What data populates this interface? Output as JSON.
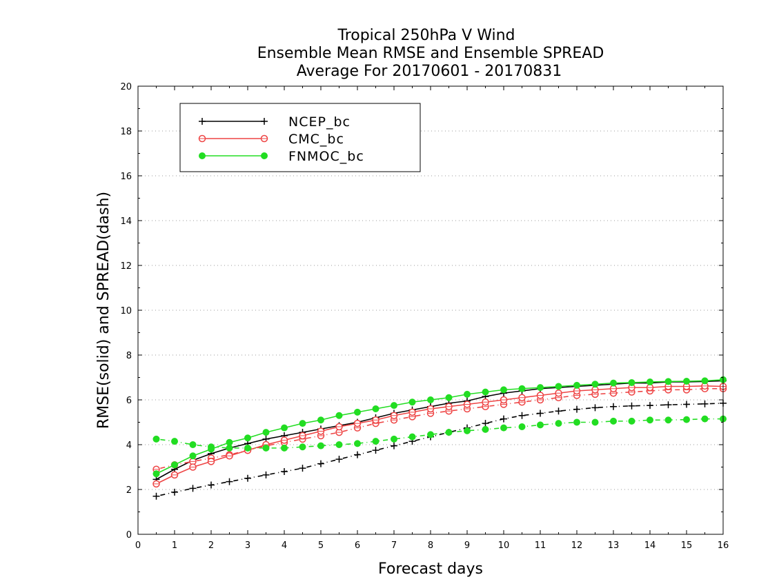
{
  "chart_data": {
    "type": "line",
    "title": [
      "Tropical 250hPa V Wind",
      "Ensemble Mean RMSE and Ensemble SPREAD",
      "Average For 20170601 - 20170831"
    ],
    "xlabel": "Forecast days",
    "ylabel": "RMSE(solid) and SPREAD(dash)",
    "xlim": [
      0,
      16
    ],
    "ylim": [
      0,
      20
    ],
    "xticks": [
      0,
      1,
      2,
      3,
      4,
      5,
      6,
      7,
      8,
      9,
      10,
      11,
      12,
      13,
      14,
      15,
      16
    ],
    "yticks": [
      0,
      2,
      4,
      6,
      8,
      10,
      12,
      14,
      16,
      18,
      20
    ],
    "grid": "horizontal-dotted",
    "legend_position": "top-left",
    "x": [
      0.5,
      1,
      1.5,
      2,
      2.5,
      3,
      3.5,
      4,
      4.5,
      5,
      5.5,
      6,
      6.5,
      7,
      7.5,
      8,
      8.5,
      9,
      9.5,
      10,
      10.5,
      11,
      11.5,
      12,
      12.5,
      13,
      13.5,
      14,
      14.5,
      15,
      15.5,
      16
    ],
    "series": [
      {
        "name": "NCEP_bc",
        "color": "#000000",
        "marker": "plus",
        "rmse": [
          2.45,
          2.9,
          3.3,
          3.6,
          3.85,
          4.05,
          4.25,
          4.4,
          4.55,
          4.7,
          4.85,
          5.0,
          5.2,
          5.4,
          5.55,
          5.7,
          5.85,
          5.95,
          6.15,
          6.3,
          6.4,
          6.5,
          6.55,
          6.6,
          6.65,
          6.7,
          6.75,
          6.75,
          6.8,
          6.8,
          6.82,
          6.85
        ],
        "spread": [
          1.7,
          1.88,
          2.05,
          2.2,
          2.35,
          2.5,
          2.65,
          2.8,
          2.95,
          3.15,
          3.35,
          3.55,
          3.75,
          3.95,
          4.15,
          4.35,
          4.55,
          4.75,
          4.95,
          5.15,
          5.3,
          5.4,
          5.5,
          5.58,
          5.65,
          5.7,
          5.73,
          5.75,
          5.78,
          5.8,
          5.82,
          5.85
        ]
      },
      {
        "name": "CMC_bc",
        "color": "#ee4444",
        "marker": "open-circle",
        "rmse": [
          2.25,
          2.65,
          3.0,
          3.25,
          3.5,
          3.75,
          4.0,
          4.2,
          4.4,
          4.6,
          4.8,
          4.95,
          5.1,
          5.3,
          5.45,
          5.6,
          5.7,
          5.8,
          5.9,
          6.0,
          6.1,
          6.2,
          6.3,
          6.4,
          6.45,
          6.5,
          6.55,
          6.55,
          6.6,
          6.6,
          6.62,
          6.6
        ],
        "spread": [
          2.9,
          3.1,
          3.25,
          3.4,
          3.55,
          3.75,
          3.95,
          4.1,
          4.25,
          4.4,
          4.55,
          4.75,
          4.95,
          5.1,
          5.25,
          5.4,
          5.5,
          5.6,
          5.7,
          5.8,
          5.9,
          6.0,
          6.1,
          6.2,
          6.25,
          6.3,
          6.35,
          6.4,
          6.45,
          6.45,
          6.5,
          6.5
        ]
      },
      {
        "name": "FNMOC_bc",
        "color": "#22dd22",
        "marker": "filled-circle",
        "rmse": [
          2.7,
          3.1,
          3.5,
          3.8,
          4.1,
          4.3,
          4.55,
          4.75,
          4.95,
          5.1,
          5.3,
          5.45,
          5.6,
          5.75,
          5.9,
          6.0,
          6.1,
          6.25,
          6.35,
          6.45,
          6.5,
          6.55,
          6.6,
          6.65,
          6.7,
          6.75,
          6.77,
          6.8,
          6.82,
          6.83,
          6.85,
          6.9
        ],
        "spread": [
          4.25,
          4.15,
          4.0,
          3.9,
          3.85,
          3.85,
          3.85,
          3.85,
          3.9,
          3.95,
          4.0,
          4.05,
          4.15,
          4.25,
          4.35,
          4.45,
          4.55,
          4.62,
          4.68,
          4.75,
          4.8,
          4.88,
          4.95,
          5.0,
          5.0,
          5.05,
          5.05,
          5.1,
          5.1,
          5.12,
          5.15,
          5.15
        ]
      }
    ]
  }
}
